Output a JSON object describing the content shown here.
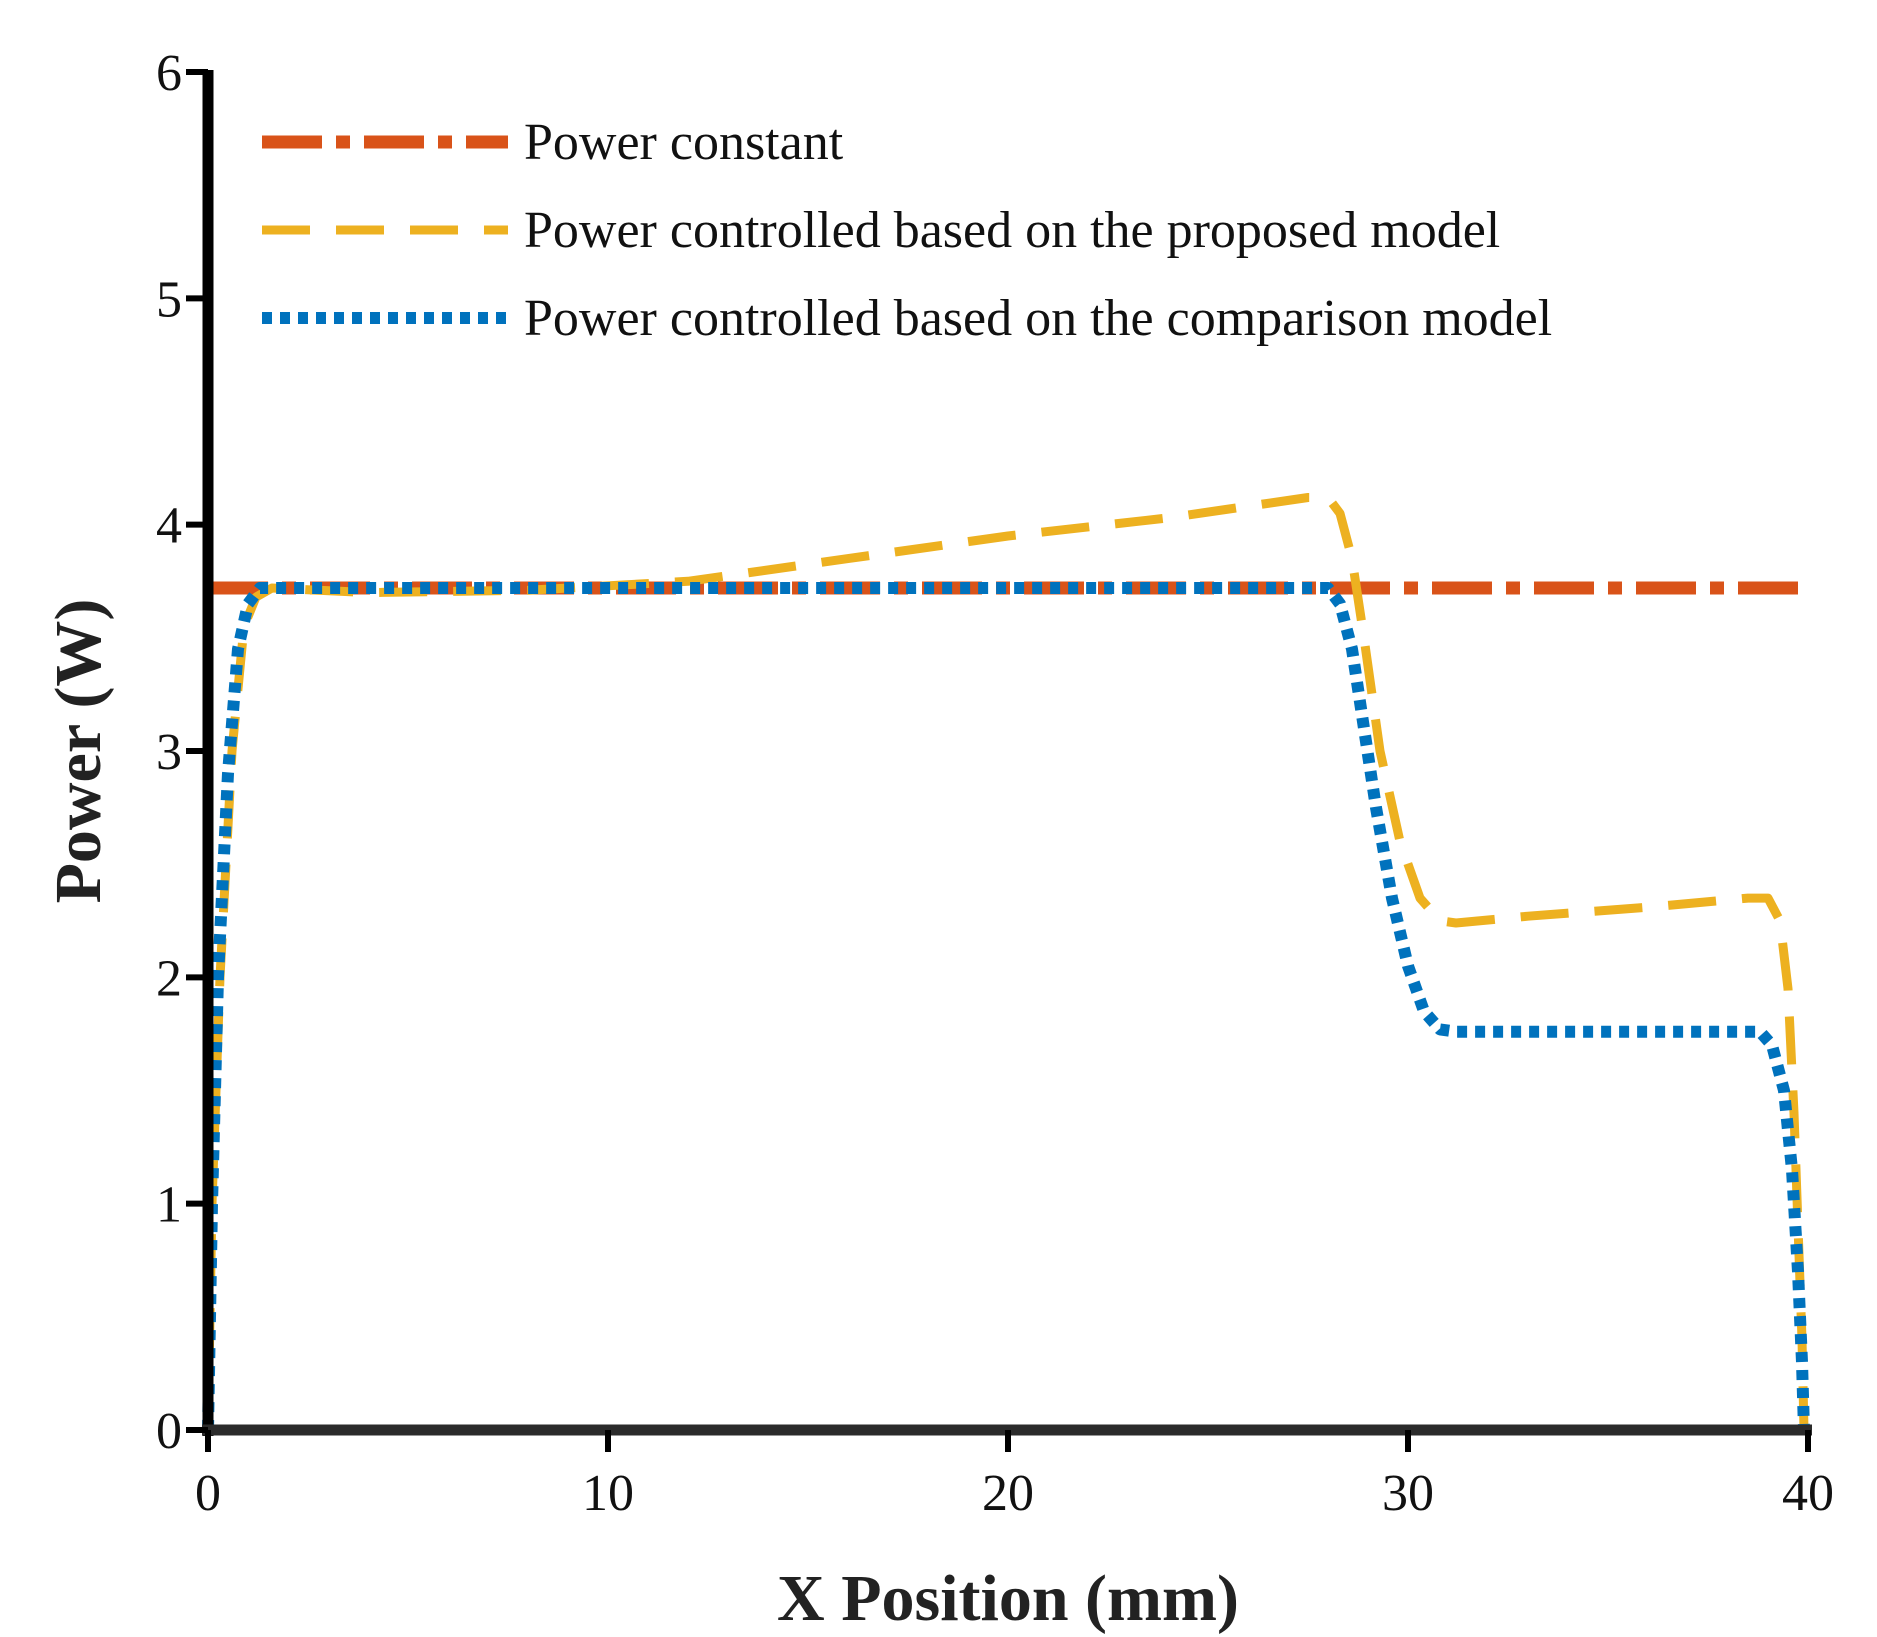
{
  "chart_data": {
    "type": "line",
    "title": "",
    "xlabel": "X Position (mm)",
    "ylabel": "Power (W)",
    "xlim": [
      0,
      40
    ],
    "ylim": [
      0,
      6
    ],
    "xticks": [
      0,
      10,
      20,
      30,
      40
    ],
    "yticks": [
      0,
      1,
      2,
      3,
      4,
      5,
      6
    ],
    "grid": false,
    "legend_position": "top-left",
    "series": [
      {
        "name": "Power constant",
        "color": "#D95319",
        "style": "dash-dot",
        "points": [
          [
            0,
            3.72
          ],
          [
            40,
            3.72
          ]
        ]
      },
      {
        "name": "Power controlled based on the proposed model",
        "color": "#EDB120",
        "style": "dashed",
        "points": [
          [
            0,
            0
          ],
          [
            0.1,
            1.0
          ],
          [
            0.3,
            2.0
          ],
          [
            0.6,
            3.0
          ],
          [
            0.9,
            3.55
          ],
          [
            1.2,
            3.68
          ],
          [
            1.6,
            3.72
          ],
          [
            4,
            3.7
          ],
          [
            8,
            3.71
          ],
          [
            12,
            3.75
          ],
          [
            16,
            3.85
          ],
          [
            20,
            3.95
          ],
          [
            24,
            4.03
          ],
          [
            27.5,
            4.12
          ],
          [
            28,
            4.12
          ],
          [
            28.3,
            4.05
          ],
          [
            28.6,
            3.85
          ],
          [
            28.9,
            3.5
          ],
          [
            29.3,
            3.0
          ],
          [
            29.8,
            2.6
          ],
          [
            30.3,
            2.35
          ],
          [
            30.8,
            2.25
          ],
          [
            31.2,
            2.24
          ],
          [
            33,
            2.27
          ],
          [
            36,
            2.31
          ],
          [
            38.5,
            2.35
          ],
          [
            39.0,
            2.35
          ],
          [
            39.3,
            2.25
          ],
          [
            39.5,
            1.95
          ],
          [
            39.65,
            1.4
          ],
          [
            39.75,
            0.9
          ],
          [
            39.85,
            0.4
          ],
          [
            39.9,
            0
          ]
        ]
      },
      {
        "name": "Power controlled based on the comparison model",
        "color": "#0072BD",
        "style": "dotted",
        "points": [
          [
            0,
            0
          ],
          [
            0.1,
            1.0
          ],
          [
            0.25,
            2.0
          ],
          [
            0.5,
            2.9
          ],
          [
            0.75,
            3.45
          ],
          [
            1.0,
            3.65
          ],
          [
            1.3,
            3.72
          ],
          [
            28,
            3.72
          ],
          [
            28.3,
            3.65
          ],
          [
            28.6,
            3.45
          ],
          [
            28.9,
            3.1
          ],
          [
            29.2,
            2.75
          ],
          [
            29.6,
            2.35
          ],
          [
            30.0,
            2.05
          ],
          [
            30.4,
            1.85
          ],
          [
            30.8,
            1.77
          ],
          [
            31.2,
            1.76
          ],
          [
            34,
            1.76
          ],
          [
            38.8,
            1.76
          ],
          [
            39.1,
            1.7
          ],
          [
            39.4,
            1.5
          ],
          [
            39.6,
            1.15
          ],
          [
            39.75,
            0.7
          ],
          [
            39.85,
            0.3
          ],
          [
            39.9,
            0
          ]
        ]
      }
    ]
  }
}
